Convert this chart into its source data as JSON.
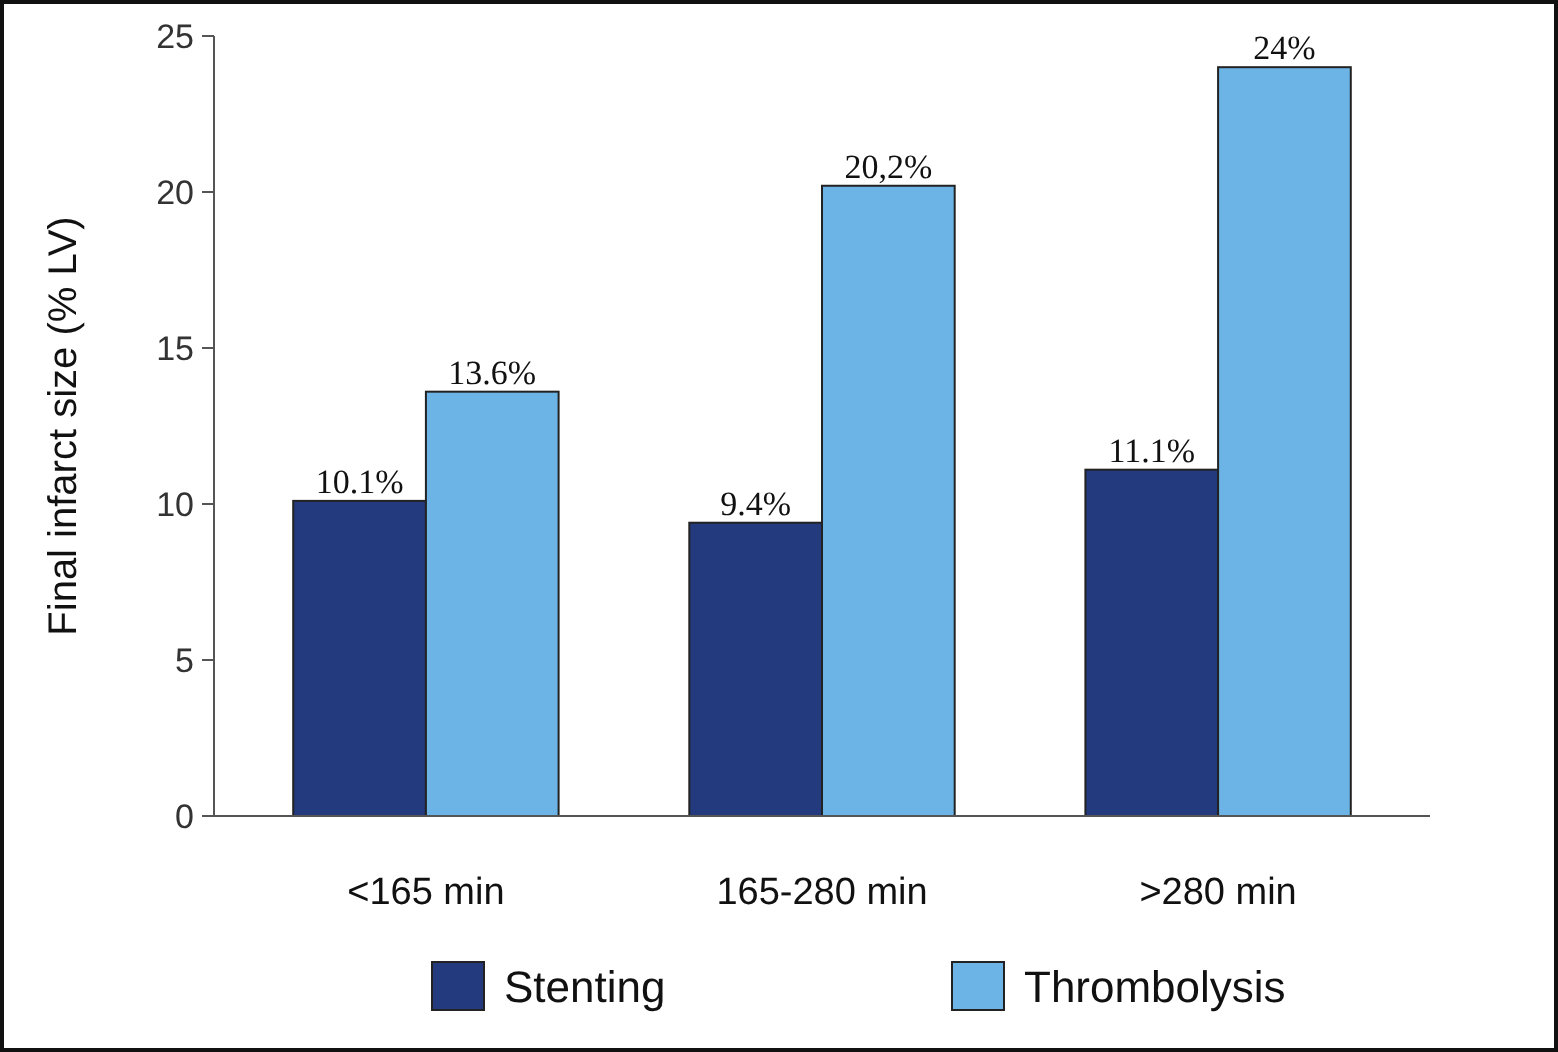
{
  "chart_data": {
    "type": "bar",
    "ylabel": "Final infarct size (% LV)",
    "categories": [
      "<165 min",
      "165-280 min",
      ">280 min"
    ],
    "series": [
      {
        "name": "Stenting",
        "color": "#243a7e",
        "values": [
          10.1,
          9.4,
          11.1
        ],
        "value_labels": [
          "10.1%",
          "9.4%",
          "11.1%"
        ]
      },
      {
        "name": "Thrombolysis",
        "color": "#6cb4e6",
        "values": [
          13.6,
          20.2,
          24
        ],
        "value_labels": [
          "13.6%",
          "20,2%",
          "24%"
        ]
      }
    ],
    "ylim": [
      0,
      25
    ],
    "yticks": [
      0,
      5,
      10,
      15,
      20,
      25
    ],
    "grid": false,
    "legend": "bottom"
  }
}
